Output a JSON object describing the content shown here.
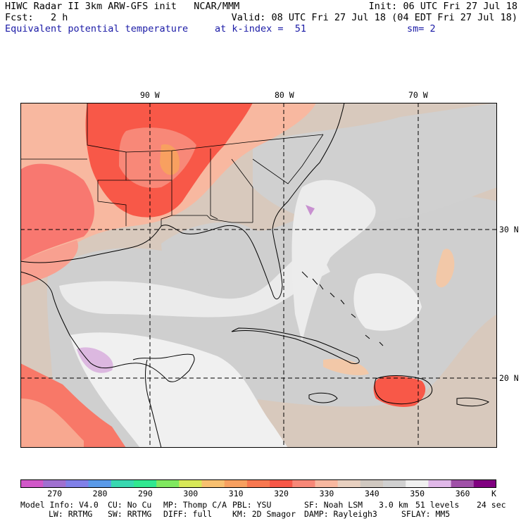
{
  "header": {
    "title": "HIWC Radar II 3km ARW-GFS init   NCAR/MMM",
    "init": "Init: 06 UTC Fri 27 Jul 18",
    "fcst": "Fcst:   2 h",
    "valid": "Valid: 08 UTC Fri 27 Jul 18 (04 EDT Fri 27 Jul 18)",
    "field": "Equivalent potential temperature",
    "level": "at k-index =  51",
    "smoothing": "sm= 2"
  },
  "map": {
    "lon_labels": [
      "90 W",
      "80 W",
      "70 W"
    ],
    "lat_labels": [
      "30 N",
      "20 N"
    ]
  },
  "colorbar": {
    "labels": [
      "270",
      "280",
      "290",
      "300",
      "310",
      "320",
      "330",
      "340",
      "350",
      "360"
    ],
    "unit": "K",
    "colors": [
      "#d158c8",
      "#a070d0",
      "#8080e8",
      "#5a9ae8",
      "#38d8b0",
      "#30e890",
      "#80e860",
      "#d8e858",
      "#f8c070",
      "#f8a060",
      "#f87850",
      "#f85848",
      "#f88878",
      "#f8b8a0",
      "#e8d0c0",
      "#d0c8c0",
      "#d0d0d0",
      "#f0f0f0",
      "#e0b8e8",
      "#a050a8",
      "#800080"
    ]
  },
  "footer": {
    "line1": [
      "Model Info: V4.0",
      "CU: No Cu",
      "MP: Thomp C/A",
      "PBL: YSU",
      "SF: Noah LSM",
      "3.0 km",
      "51 levels",
      "24 sec"
    ],
    "line2": [
      "LW: RRTMG",
      "SW: RRTMG",
      "DIFF: full",
      "KM: 2D Smagor",
      "DAMP: Rayleigh3",
      "SFLAY: MM5"
    ]
  }
}
